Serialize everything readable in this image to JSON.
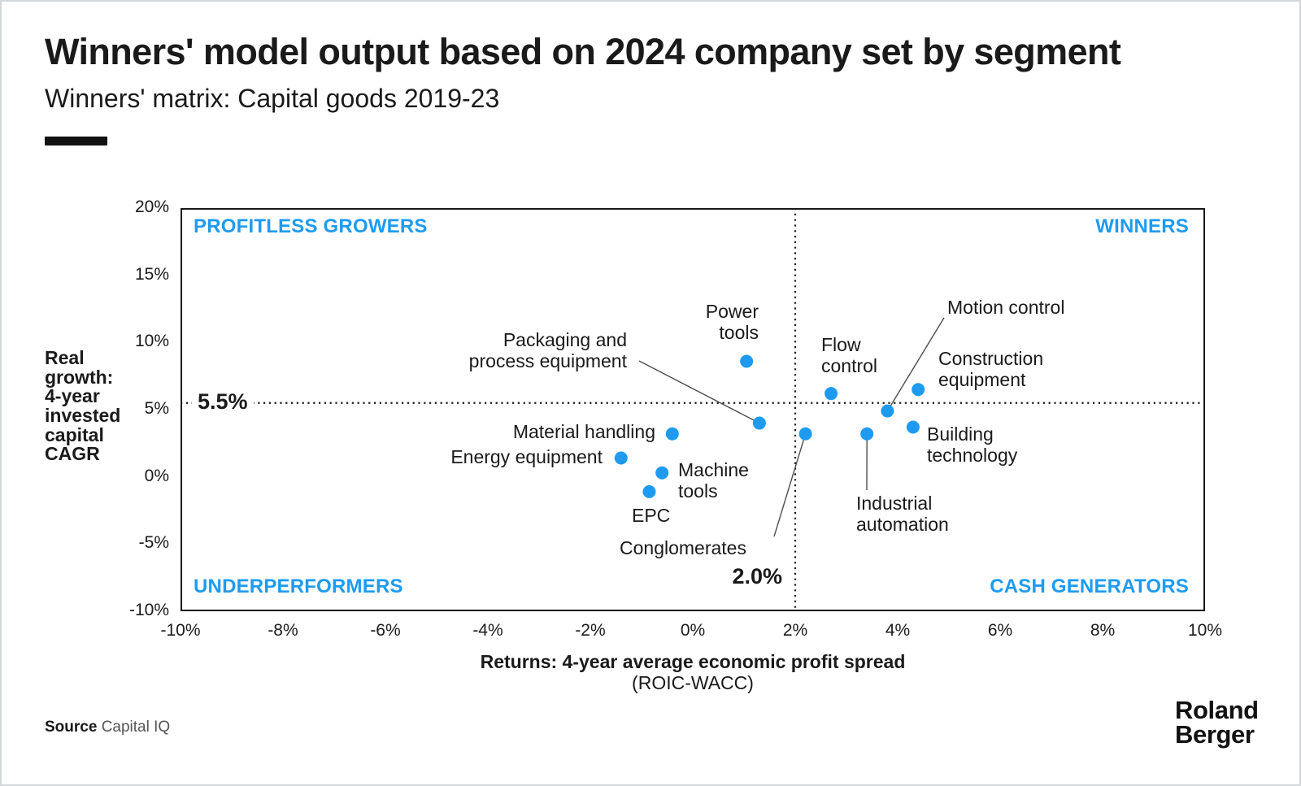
{
  "header": {
    "title": "Winners' model output based on 2024 company set by segment",
    "subtitle": "Winners' matrix: Capital goods 2019-23"
  },
  "colors": {
    "accent_blue": "#1E9BF0",
    "text_dark": "#1A1A1A",
    "leader_line": "#4d4d4d"
  },
  "chart_data": {
    "type": "scatter",
    "title": "Winners' matrix: Capital goods 2019-23",
    "xlabel": "Returns: 4-year average economic profit spread",
    "xlabel_line2": "(ROIC-WACC)",
    "ylabel": "Real growth: 4-year invested capital CAGR",
    "ylabel_display": "Real\ngrowth:\n4-year\ninvested\ncapital\nCAGR",
    "xlim": [
      -10,
      10
    ],
    "ylim": [
      -10,
      20
    ],
    "grid": false,
    "x_ticks": [
      {
        "value": -10,
        "label": "-10%"
      },
      {
        "value": -8,
        "label": "-8%"
      },
      {
        "value": -6,
        "label": "-6%"
      },
      {
        "value": -4,
        "label": "-4%"
      },
      {
        "value": -2,
        "label": "-2%"
      },
      {
        "value": 0,
        "label": "0%"
      },
      {
        "value": 2,
        "label": "2%"
      },
      {
        "value": 4,
        "label": "4%"
      },
      {
        "value": 6,
        "label": "6%"
      },
      {
        "value": 8,
        "label": "8%"
      },
      {
        "value": 10,
        "label": "10%"
      }
    ],
    "y_ticks": [
      {
        "value": 20,
        "label": "20%"
      },
      {
        "value": 15,
        "label": "15%"
      },
      {
        "value": 10,
        "label": "10%"
      },
      {
        "value": 5,
        "label": "5%"
      },
      {
        "value": 0,
        "label": "0%"
      },
      {
        "value": -5,
        "label": "-5%"
      },
      {
        "value": -10,
        "label": "-10%"
      }
    ],
    "reference_lines": {
      "x": {
        "value": 2.0,
        "label": "2.0%"
      },
      "y": {
        "value": 5.5,
        "label": "5.5%"
      }
    },
    "quadrants": [
      {
        "id": "top-left",
        "label": "PROFITLESS GROWERS"
      },
      {
        "id": "top-right",
        "label": "WINNERS"
      },
      {
        "id": "bottom-left",
        "label": "UNDERPERFORMERS"
      },
      {
        "id": "bottom-right",
        "label": "CASH GENERATORS"
      }
    ],
    "points": [
      {
        "id": "power-tools",
        "label": "Power\ntools",
        "x": 1.05,
        "y": 8.6
      },
      {
        "id": "packaging-process-equipment",
        "label": "Packaging and\nprocess equipment",
        "x": 1.3,
        "y": 4.0
      },
      {
        "id": "material-handling",
        "label": "Material handling",
        "x": -0.4,
        "y": 3.2
      },
      {
        "id": "energy-equipment",
        "label": "Energy equipment",
        "x": -1.4,
        "y": 1.4
      },
      {
        "id": "machine-tools",
        "label": "Machine\ntools",
        "x": -0.6,
        "y": 0.3
      },
      {
        "id": "epc",
        "label": "EPC",
        "x": -0.85,
        "y": -1.1
      },
      {
        "id": "conglomerates",
        "label": "Conglomerates",
        "x": 2.2,
        "y": 3.2
      },
      {
        "id": "flow-control",
        "label": "Flow\ncontrol",
        "x": 2.7,
        "y": 6.2
      },
      {
        "id": "motion-control",
        "label": "Motion control",
        "x": 3.8,
        "y": 4.9
      },
      {
        "id": "construction-equipment",
        "label": "Construction\nequipment",
        "x": 4.4,
        "y": 6.5
      },
      {
        "id": "building-technology",
        "label": "Building\ntechnology",
        "x": 4.3,
        "y": 3.7
      },
      {
        "id": "industrial-automation",
        "label": "Industrial\nautomation",
        "x": 3.4,
        "y": 3.2
      }
    ]
  },
  "footer": {
    "source_label": "Source",
    "source_value": "Capital IQ",
    "logo_line1": "Roland",
    "logo_line2": "Berger"
  }
}
